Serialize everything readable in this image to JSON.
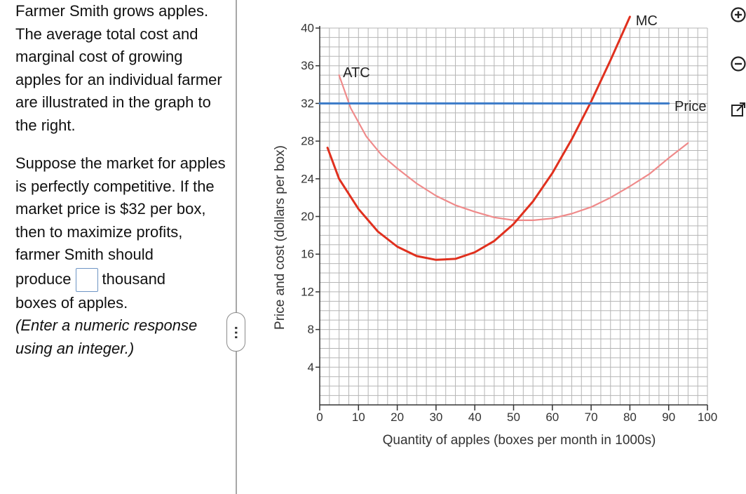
{
  "question": {
    "para1": "Farmer Smith grows apples.  The average total cost and marginal cost of growing apples for an individual farmer are illustrated in the graph to the right.",
    "para2": "Suppose the market for apples is perfectly competitive.  If the market price is $32 per box, then to maximize profits, farmer Smith should",
    "produce_label": "produce",
    "thousand_label": "thousand",
    "tail_label": "boxes of apples.",
    "instruction": "(Enter a numeric response using an integer.)",
    "answer_value": ""
  },
  "tools": {
    "zoom_in": "zoom-in-icon",
    "zoom_out": "zoom-out-icon",
    "popout": "popout-icon"
  },
  "chart_data": {
    "type": "line",
    "xlabel": "Quantity of apples (boxes per month in 1000s)",
    "ylabel": "Price and cost (dollars per box)",
    "xlim": [
      0,
      100
    ],
    "ylim": [
      0,
      40
    ],
    "x_ticks": [
      0,
      10,
      20,
      30,
      40,
      50,
      60,
      70,
      80,
      90,
      100
    ],
    "y_ticks": [
      4,
      8,
      12,
      16,
      20,
      24,
      28,
      32,
      36,
      40
    ],
    "grid": true,
    "series": [
      {
        "name": "MC",
        "color": "#e0301e",
        "x": [
          2,
          5,
          10,
          15,
          20,
          25,
          30,
          35,
          40,
          45,
          50,
          55,
          60,
          65,
          70,
          75,
          80
        ],
        "y": [
          27.3,
          24,
          20.8,
          18.4,
          16.8,
          15.8,
          15.4,
          15.5,
          16.2,
          17.4,
          19.2,
          21.6,
          24.6,
          28.2,
          32.2,
          36.6,
          41.2
        ]
      },
      {
        "name": "ATC",
        "color": "#ef8a8a",
        "x": [
          5,
          8,
          12,
          16,
          20,
          25,
          30,
          35,
          40,
          45,
          50,
          55,
          60,
          65,
          70,
          75,
          80,
          85,
          90,
          95
        ],
        "y": [
          35,
          31.5,
          28.5,
          26.5,
          25.1,
          23.5,
          22.2,
          21.2,
          20.5,
          19.9,
          19.6,
          19.6,
          19.8,
          20.3,
          21,
          22,
          23.2,
          24.5,
          26.2,
          27.8
        ]
      },
      {
        "name": "Price",
        "color": "#3a7ac8",
        "x": [
          0,
          90
        ],
        "y": [
          32,
          32
        ]
      }
    ],
    "annotations": [
      {
        "text": "ATC",
        "x": 6,
        "y": 34.8
      },
      {
        "text": "MC",
        "x": 81.5,
        "y": 40.3
      },
      {
        "text": "Price",
        "x": 91.5,
        "y": 31.2
      }
    ]
  }
}
